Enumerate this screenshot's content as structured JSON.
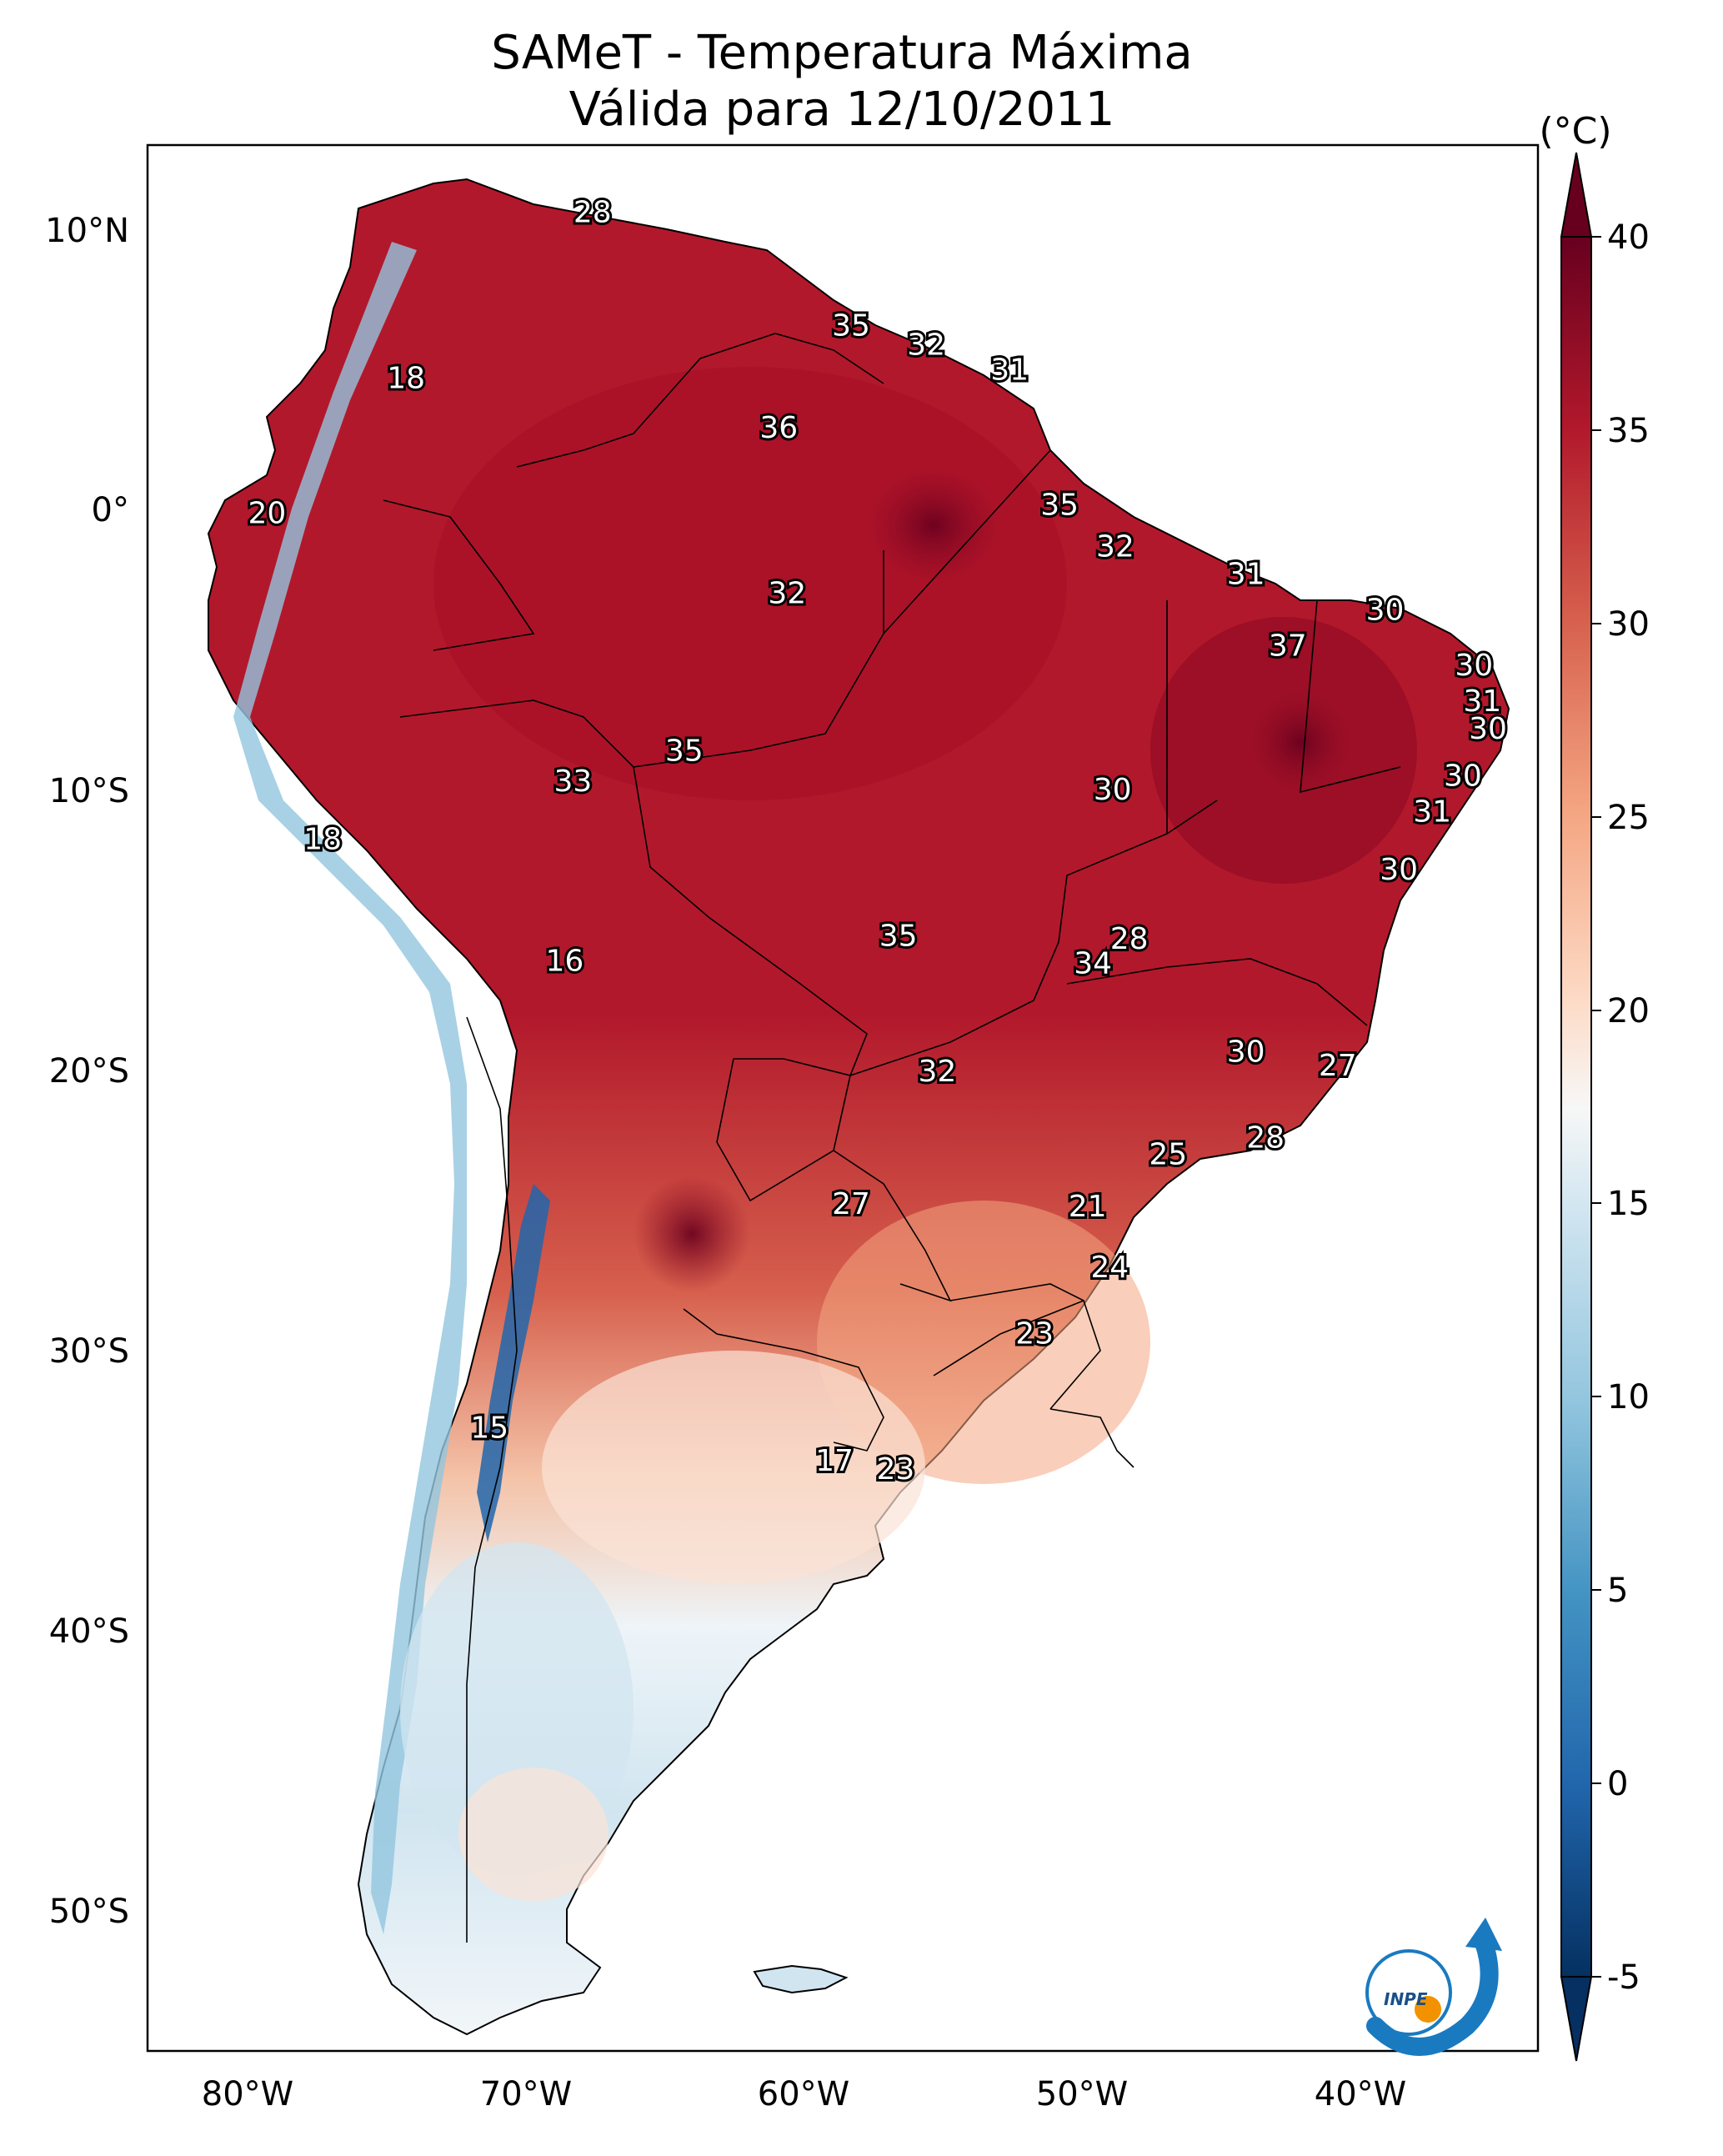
{
  "title_line1": "SAMeT - Temperatura Máxima",
  "title_line2": "Válida para 12/10/2011",
  "colorbar_unit": "(°C)",
  "colorbar_ticks": [
    "40",
    "35",
    "30",
    "25",
    "20",
    "15",
    "10",
    "5",
    "0",
    "-5"
  ],
  "lat_ticks": [
    "10°N",
    "0°",
    "10°S",
    "20°S",
    "30°S",
    "40°S",
    "50°S"
  ],
  "lon_ticks": [
    "80°W",
    "70°W",
    "60°W",
    "50°W",
    "40°W"
  ],
  "logo_text": "INPE",
  "colors": {
    "hot_dark": "#67001f",
    "hot": "#b2182b",
    "warm": "#d6604d",
    "mild_warm": "#f4a582",
    "light_warm": "#fddbc7",
    "neutral": "#f7f7f7",
    "light_cool": "#d1e5f0",
    "cool": "#92c5de",
    "cold": "#4393c3",
    "very_cold": "#2166ac",
    "cold_dark": "#053061",
    "logo_blue": "#1a7ac0",
    "logo_orange": "#f39200"
  },
  "map_data": {
    "type": "heatmap",
    "variable": "Temperatura Máxima",
    "units": "°C",
    "color_range": [
      -5,
      40
    ],
    "lon_range": [
      -83,
      -33
    ],
    "lat_range": [
      -56,
      13
    ],
    "point_labels": [
      {
        "value": "28",
        "lon": -67.0,
        "lat": 10.6
      },
      {
        "value": "35",
        "lon": -57.7,
        "lat": 6.5
      },
      {
        "value": "32",
        "lon": -55.0,
        "lat": 5.8
      },
      {
        "value": "31",
        "lon": -52.0,
        "lat": 4.9
      },
      {
        "value": "18",
        "lon": -73.7,
        "lat": 4.6
      },
      {
        "value": "36",
        "lon": -60.3,
        "lat": 2.8
      },
      {
        "value": "20",
        "lon": -78.7,
        "lat": -0.3
      },
      {
        "value": "35",
        "lon": -50.2,
        "lat": 0.0
      },
      {
        "value": "32",
        "lon": -48.2,
        "lat": -1.5
      },
      {
        "value": "31",
        "lon": -43.5,
        "lat": -2.5
      },
      {
        "value": "32",
        "lon": -60.0,
        "lat": -3.2
      },
      {
        "value": "30",
        "lon": -38.5,
        "lat": -3.8
      },
      {
        "value": "37",
        "lon": -42.0,
        "lat": -5.1
      },
      {
        "value": "30",
        "lon": -35.3,
        "lat": -5.8
      },
      {
        "value": "31",
        "lon": -35.0,
        "lat": -7.1
      },
      {
        "value": "30",
        "lon": -34.8,
        "lat": -8.1
      },
      {
        "value": "35",
        "lon": -63.7,
        "lat": -8.9
      },
      {
        "value": "33",
        "lon": -67.7,
        "lat": -10.0
      },
      {
        "value": "30",
        "lon": -48.3,
        "lat": -10.3
      },
      {
        "value": "30",
        "lon": -35.7,
        "lat": -9.8
      },
      {
        "value": "31",
        "lon": -36.8,
        "lat": -11.1
      },
      {
        "value": "18",
        "lon": -76.7,
        "lat": -12.1
      },
      {
        "value": "30",
        "lon": -38.0,
        "lat": -13.2
      },
      {
        "value": "35",
        "lon": -56.0,
        "lat": -15.6
      },
      {
        "value": "28",
        "lon": -47.7,
        "lat": -15.7
      },
      {
        "value": "34",
        "lon": -49.0,
        "lat": -16.6
      },
      {
        "value": "16",
        "lon": -68.0,
        "lat": -16.5
      },
      {
        "value": "30",
        "lon": -43.5,
        "lat": -19.8
      },
      {
        "value": "27",
        "lon": -40.2,
        "lat": -20.3
      },
      {
        "value": "32",
        "lon": -54.6,
        "lat": -20.5
      },
      {
        "value": "28",
        "lon": -42.8,
        "lat": -22.9
      },
      {
        "value": "25",
        "lon": -46.3,
        "lat": -23.5
      },
      {
        "value": "27",
        "lon": -57.7,
        "lat": -25.3
      },
      {
        "value": "21",
        "lon": -49.2,
        "lat": -25.4
      },
      {
        "value": "24",
        "lon": -48.4,
        "lat": -27.6
      },
      {
        "value": "23",
        "lon": -51.1,
        "lat": -30.0
      },
      {
        "value": "15",
        "lon": -70.7,
        "lat": -33.4
      },
      {
        "value": "17",
        "lon": -58.3,
        "lat": -34.6
      },
      {
        "value": "23",
        "lon": -56.1,
        "lat": -34.9
      }
    ]
  }
}
